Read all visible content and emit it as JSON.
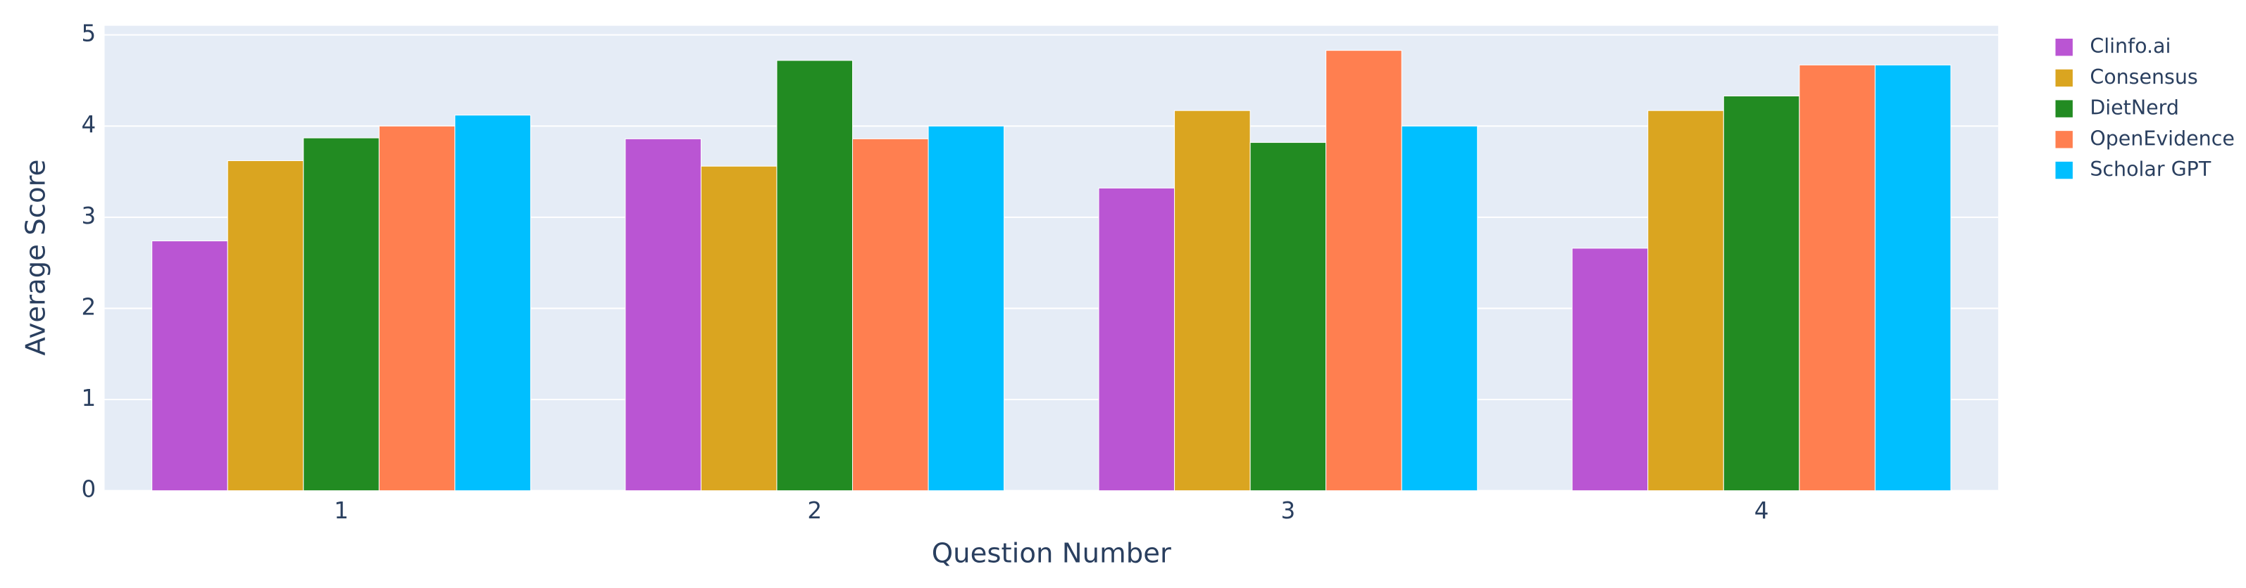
{
  "chart_data": {
    "type": "bar",
    "x_label": "Question Number",
    "y_label": "Average Score",
    "categories": [
      "1",
      "2",
      "3",
      "4"
    ],
    "series": [
      {
        "name": "Clinfo.ai",
        "color": "#ba55d3",
        "values": [
          2.74,
          3.86,
          3.32,
          2.66
        ]
      },
      {
        "name": "Consensus",
        "color": "#daa520",
        "values": [
          3.62,
          3.56,
          4.17,
          4.17
        ]
      },
      {
        "name": "DietNerd",
        "color": "#228b22",
        "values": [
          3.87,
          4.72,
          3.82,
          4.33
        ]
      },
      {
        "name": "OpenEvidence",
        "color": "#ff7f50",
        "values": [
          4.0,
          3.86,
          4.83,
          4.67
        ]
      },
      {
        "name": "Scholar GPT",
        "color": "#00bfff",
        "values": [
          4.12,
          4.0,
          4.0,
          4.67
        ]
      }
    ],
    "ylim": [
      0,
      5.1
    ],
    "yticks": [
      0,
      1,
      2,
      3,
      4,
      5
    ],
    "grid": true,
    "legend": "right"
  }
}
